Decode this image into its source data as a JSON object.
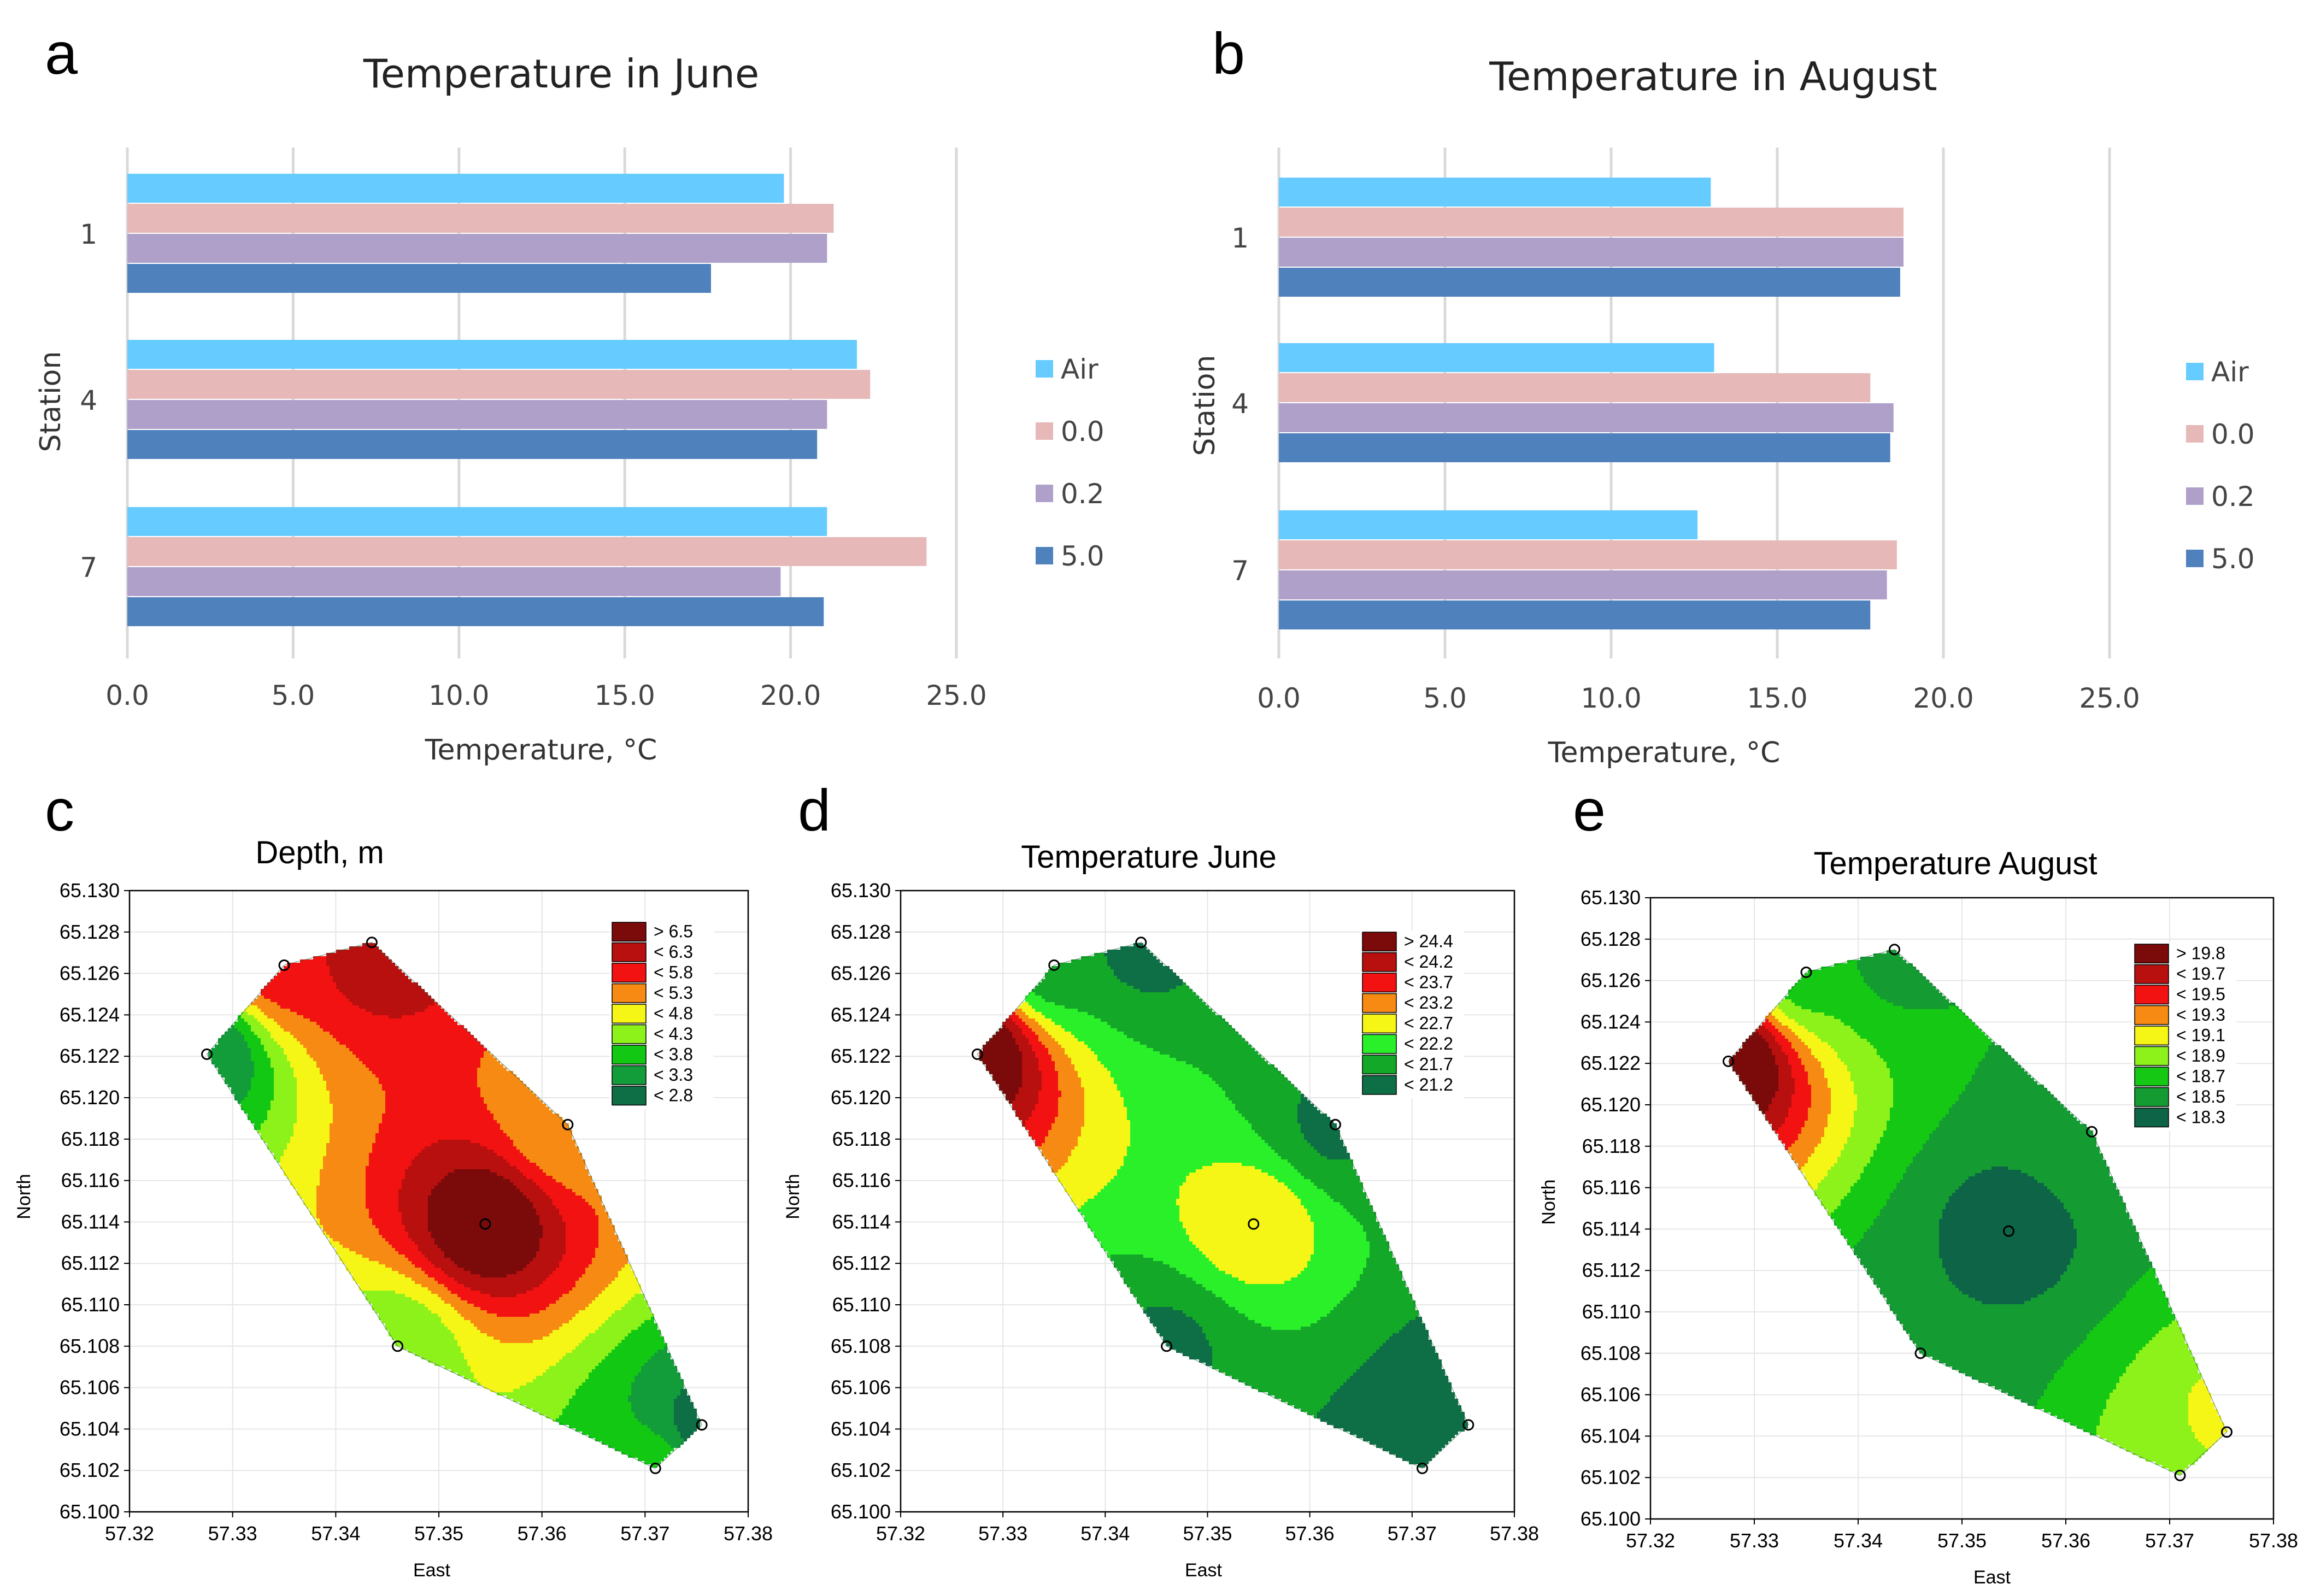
{
  "panel_labels": [
    "a",
    "b",
    "c",
    "d",
    "e"
  ],
  "chart_data": [
    {
      "id": "a",
      "type": "bar",
      "orientation": "horizontal",
      "title": "Temperature  in June",
      "xlabel": "Temperature, °C",
      "ylabel": "Station",
      "categories": [
        "1",
        "4",
        "7"
      ],
      "xlim": [
        0,
        25
      ],
      "xticks": [
        "0.0",
        "5.0",
        "10.0",
        "15.0",
        "20.0",
        "25.0"
      ],
      "grid": "vertical",
      "legend_position": "right",
      "series": [
        {
          "name": "Air",
          "color": "#66CCFF",
          "values": [
            19.8,
            22.0,
            21.1
          ]
        },
        {
          "name": "0.0",
          "color": "#E6B8B8",
          "values": [
            21.3,
            22.4,
            24.1
          ]
        },
        {
          "name": "0.2",
          "color": "#AFA0CA",
          "values": [
            21.1,
            21.1,
            19.7
          ]
        },
        {
          "name": "5.0",
          "color": "#4F81BD",
          "values": [
            17.6,
            20.8,
            21.0
          ]
        }
      ]
    },
    {
      "id": "b",
      "type": "bar",
      "orientation": "horizontal",
      "title": "Temperature  in August",
      "xlabel": "Temperature, °C",
      "ylabel": "Station",
      "categories": [
        "1",
        "4",
        "7"
      ],
      "xlim": [
        0,
        25
      ],
      "xticks": [
        "0.0",
        "5.0",
        "10.0",
        "15.0",
        "20.0",
        "25.0"
      ],
      "grid": "vertical",
      "legend_position": "right",
      "series": [
        {
          "name": "Air",
          "color": "#66CCFF",
          "values": [
            13.0,
            13.1,
            12.6
          ]
        },
        {
          "name": "0.0",
          "color": "#E6B8B8",
          "values": [
            18.8,
            17.8,
            18.6
          ]
        },
        {
          "name": "0.2",
          "color": "#AFA0CA",
          "values": [
            18.8,
            18.5,
            18.3
          ]
        },
        {
          "name": "5.0",
          "color": "#4F81BD",
          "values": [
            18.7,
            18.4,
            17.8
          ]
        }
      ]
    },
    {
      "id": "c",
      "type": "heatmap",
      "subtype": "contour",
      "title": "Depth, m",
      "xlabel": "East",
      "ylabel": "North",
      "xlim": [
        57.32,
        57.38
      ],
      "ylim": [
        65.1,
        65.13
      ],
      "xticks": [
        "57.32",
        "57.33",
        "57.34",
        "57.35",
        "57.36",
        "57.37",
        "57.38"
      ],
      "yticks": [
        "65.100",
        "65.102",
        "65.104",
        "65.106",
        "65.108",
        "65.110",
        "65.112",
        "65.114",
        "65.116",
        "65.118",
        "65.120",
        "65.122",
        "65.124",
        "65.126",
        "65.128",
        "65.130"
      ],
      "grid": true,
      "points": [
        {
          "x": 57.3275,
          "y": 65.1221,
          "v": 2.8
        },
        {
          "x": 57.335,
          "y": 65.1264,
          "v": 5.6
        },
        {
          "x": 57.3435,
          "y": 65.1275,
          "v": 6.3
        },
        {
          "x": 57.3625,
          "y": 65.1187,
          "v": 4.8
        },
        {
          "x": 57.3545,
          "y": 65.1139,
          "v": 6.9
        },
        {
          "x": 57.346,
          "y": 65.108,
          "v": 3.9
        },
        {
          "x": 57.371,
          "y": 65.1021,
          "v": 3.6
        },
        {
          "x": 57.3755,
          "y": 65.1042,
          "v": 2.6
        }
      ],
      "legend_position": "top-right",
      "legend": [
        {
          "label": "> 6.5",
          "color": "#7B0A0A"
        },
        {
          "label": "< 6.3",
          "color": "#B80F0F"
        },
        {
          "label": "< 5.8",
          "color": "#F21212"
        },
        {
          "label": "< 5.3",
          "color": "#F78A12"
        },
        {
          "label": "< 4.8",
          "color": "#F5F516"
        },
        {
          "label": "< 4.3",
          "color": "#8CF21A"
        },
        {
          "label": "< 3.8",
          "color": "#12C812"
        },
        {
          "label": "< 3.3",
          "color": "#139C3A"
        },
        {
          "label": "< 2.8",
          "color": "#0E6E45"
        }
      ],
      "thresholds": [
        2.8,
        3.3,
        3.8,
        4.3,
        4.8,
        5.3,
        5.8,
        6.3,
        6.5
      ]
    },
    {
      "id": "d",
      "type": "heatmap",
      "subtype": "contour",
      "title": "Temperature June",
      "xlabel": "East",
      "ylabel": "North",
      "xlim": [
        57.32,
        57.38
      ],
      "ylim": [
        65.1,
        65.13
      ],
      "xticks": [
        "57.32",
        "57.33",
        "57.34",
        "57.35",
        "57.36",
        "57.37",
        "57.38"
      ],
      "yticks": [
        "65.100",
        "65.102",
        "65.104",
        "65.106",
        "65.108",
        "65.110",
        "65.112",
        "65.114",
        "65.116",
        "65.118",
        "65.120",
        "65.122",
        "65.124",
        "65.126",
        "65.128",
        "65.130"
      ],
      "grid": true,
      "points": [
        {
          "x": 57.3275,
          "y": 65.1221,
          "v": 24.8
        },
        {
          "x": 57.335,
          "y": 65.1264,
          "v": 21.4
        },
        {
          "x": 57.3435,
          "y": 65.1275,
          "v": 21.0
        },
        {
          "x": 57.3625,
          "y": 65.1187,
          "v": 21.1
        },
        {
          "x": 57.3545,
          "y": 65.1139,
          "v": 22.6
        },
        {
          "x": 57.346,
          "y": 65.108,
          "v": 21.1
        },
        {
          "x": 57.371,
          "y": 65.1021,
          "v": 21.0
        },
        {
          "x": 57.3755,
          "y": 65.1042,
          "v": 20.8
        }
      ],
      "legend_position": "top-right",
      "legend": [
        {
          "label": "> 24.4",
          "color": "#7B0A0A"
        },
        {
          "label": "< 24.2",
          "color": "#B80F0F"
        },
        {
          "label": "< 23.7",
          "color": "#F21212"
        },
        {
          "label": "< 23.2",
          "color": "#F78A12"
        },
        {
          "label": "< 22.7",
          "color": "#F5F516"
        },
        {
          "label": "< 22.2",
          "color": "#2AF02A"
        },
        {
          "label": "< 21.7",
          "color": "#14A828"
        },
        {
          "label": "< 21.2",
          "color": "#0E6E45"
        }
      ],
      "thresholds": [
        21.2,
        21.7,
        22.2,
        22.7,
        23.2,
        23.7,
        24.2,
        24.4
      ]
    },
    {
      "id": "e",
      "type": "heatmap",
      "subtype": "contour",
      "title": "Temperature August",
      "xlabel": "East",
      "ylabel": "North",
      "xlim": [
        57.32,
        57.38
      ],
      "ylim": [
        65.1,
        65.13
      ],
      "xticks": [
        "57.32",
        "57.33",
        "57.34",
        "57.35",
        "57.36",
        "57.37",
        "57.38"
      ],
      "yticks": [
        "65.100",
        "65.102",
        "65.104",
        "65.106",
        "65.108",
        "65.110",
        "65.112",
        "65.114",
        "65.116",
        "65.118",
        "65.120",
        "65.122",
        "65.124",
        "65.126",
        "65.128",
        "65.130"
      ],
      "grid": true,
      "points": [
        {
          "x": 57.3275,
          "y": 65.1221,
          "v": 20.0
        },
        {
          "x": 57.335,
          "y": 65.1264,
          "v": 18.6
        },
        {
          "x": 57.3435,
          "y": 65.1275,
          "v": 18.4
        },
        {
          "x": 57.3625,
          "y": 65.1187,
          "v": 18.4
        },
        {
          "x": 57.3545,
          "y": 65.1139,
          "v": 18.2
        },
        {
          "x": 57.346,
          "y": 65.108,
          "v": 18.3
        },
        {
          "x": 57.371,
          "y": 65.1021,
          "v": 18.7
        },
        {
          "x": 57.3755,
          "y": 65.1042,
          "v": 19.0
        }
      ],
      "legend_position": "top-right",
      "legend": [
        {
          "label": "> 19.8",
          "color": "#7B0A0A"
        },
        {
          "label": "< 19.7",
          "color": "#B80F0F"
        },
        {
          "label": "< 19.5",
          "color": "#F21212"
        },
        {
          "label": "< 19.3",
          "color": "#F78A12"
        },
        {
          "label": "< 19.1",
          "color": "#F5F516"
        },
        {
          "label": "< 18.9",
          "color": "#8CF21A"
        },
        {
          "label": "< 18.7",
          "color": "#14C814"
        },
        {
          "label": "< 18.5",
          "color": "#149C32"
        },
        {
          "label": "< 18.3",
          "color": "#0E6447"
        }
      ],
      "thresholds": [
        18.3,
        18.5,
        18.7,
        18.9,
        19.1,
        19.3,
        19.5,
        19.7,
        19.8
      ]
    }
  ]
}
